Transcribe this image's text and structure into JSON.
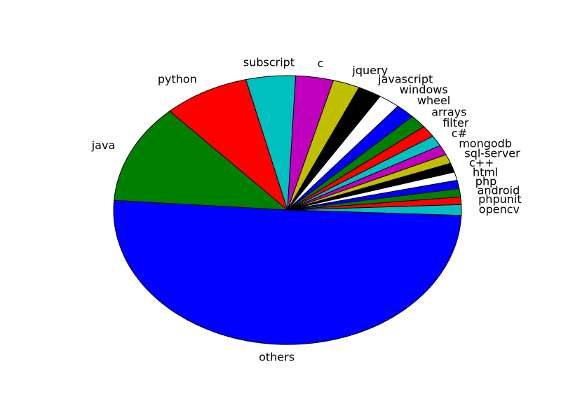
{
  "chart_data": {
    "type": "pie",
    "title": "",
    "start_angle_deg": 0,
    "direction": "clockwise",
    "slices": [
      {
        "label": "opencv",
        "value": 1.3,
        "color": "#00bfbf"
      },
      {
        "label": "others",
        "value": 50.5,
        "color": "#0000ff"
      },
      {
        "label": "java",
        "value": 12.0,
        "color": "#008000"
      },
      {
        "label": "python",
        "value": 8.0,
        "color": "#ff0000"
      },
      {
        "label": "subscript",
        "value": 4.6,
        "color": "#00bfbf"
      },
      {
        "label": "c",
        "value": 3.5,
        "color": "#bf00bf"
      },
      {
        "label": "jquery",
        "value": 2.5,
        "color": "#bfbf00"
      },
      {
        "label": "javascript",
        "value": 2.2,
        "color": "#000000"
      },
      {
        "label": "windows",
        "value": 2.0,
        "color": "#ffffff"
      },
      {
        "label": "wheel",
        "value": 1.8,
        "color": "#0000ff"
      },
      {
        "label": "arrays",
        "value": 1.6,
        "color": "#008000"
      },
      {
        "label": "filter",
        "value": 1.4,
        "color": "#ff0000"
      },
      {
        "label": "c#",
        "value": 1.3,
        "color": "#00bfbf"
      },
      {
        "label": "mongodb",
        "value": 1.2,
        "color": "#bf00bf"
      },
      {
        "label": "sql-server",
        "value": 1.1,
        "color": "#bfbf00"
      },
      {
        "label": "c++",
        "value": 1.1,
        "color": "#000000"
      },
      {
        "label": "html",
        "value": 1.0,
        "color": "#ffffff"
      },
      {
        "label": "php",
        "value": 1.0,
        "color": "#0000ff"
      },
      {
        "label": "android",
        "value": 1.0,
        "color": "#008000"
      },
      {
        "label": "phpunit",
        "value": 0.9,
        "color": "#ff0000"
      }
    ]
  }
}
